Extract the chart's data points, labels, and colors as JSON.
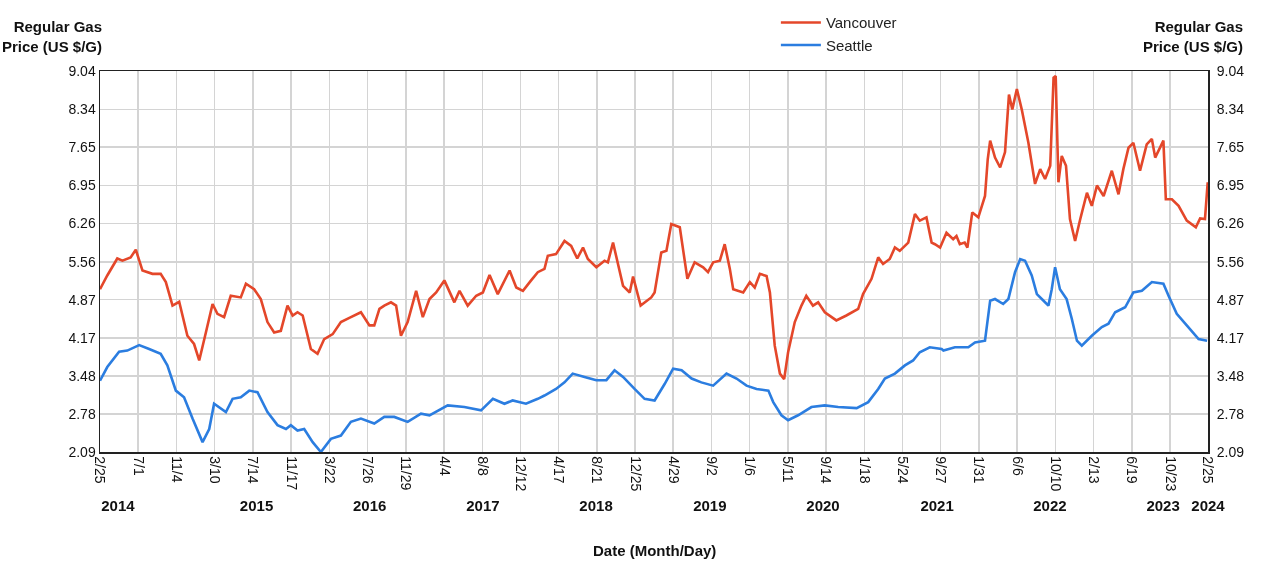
{
  "chart_data": {
    "type": "line",
    "xlabel": "Date (Month/Day)",
    "ylabel": "Regular Gas Price (US $/G)",
    "y2label": "Regular Gas Price (US $/G)",
    "xlim": [
      "2014-02-25",
      "2024-02-25"
    ],
    "xticks": [
      {
        "value": "2014-02-25",
        "label": "2/25"
      },
      {
        "value": "2014-07-01",
        "label": "7/1"
      },
      {
        "value": "2014-11-04",
        "label": "11/4"
      },
      {
        "value": "2015-03-10",
        "label": "3/10"
      },
      {
        "value": "2015-07-14",
        "label": "7/14"
      },
      {
        "value": "2015-11-17",
        "label": "11/17"
      },
      {
        "value": "2016-03-22",
        "label": "3/22"
      },
      {
        "value": "2016-07-26",
        "label": "7/26"
      },
      {
        "value": "2016-11-29",
        "label": "11/29"
      },
      {
        "value": "2017-04-04",
        "label": "4/4"
      },
      {
        "value": "2017-08-08",
        "label": "8/8"
      },
      {
        "value": "2017-12-12",
        "label": "12/12"
      },
      {
        "value": "2018-04-17",
        "label": "4/17"
      },
      {
        "value": "2018-08-21",
        "label": "8/21"
      },
      {
        "value": "2018-12-25",
        "label": "12/25"
      },
      {
        "value": "2019-04-29",
        "label": "4/29"
      },
      {
        "value": "2019-09-02",
        "label": "9/2"
      },
      {
        "value": "2020-01-06",
        "label": "1/6"
      },
      {
        "value": "2020-05-11",
        "label": "5/11"
      },
      {
        "value": "2020-09-14",
        "label": "9/14"
      },
      {
        "value": "2021-01-18",
        "label": "1/18"
      },
      {
        "value": "2021-05-24",
        "label": "5/24"
      },
      {
        "value": "2021-09-27",
        "label": "9/27"
      },
      {
        "value": "2022-01-31",
        "label": "1/31"
      },
      {
        "value": "2022-06-06",
        "label": "6/6"
      },
      {
        "value": "2022-10-10",
        "label": "10/10"
      },
      {
        "value": "2023-02-13",
        "label": "2/13"
      },
      {
        "value": "2023-06-19",
        "label": "6/19"
      },
      {
        "value": "2023-10-23",
        "label": "10/23"
      },
      {
        "value": "2024-02-25",
        "label": "2/25"
      }
    ],
    "x2lim": [
      "2014-02-25",
      "2024-02-25"
    ],
    "x2ticks": [
      {
        "value": "2014-04-25",
        "label": "2014"
      },
      {
        "value": "2015-07-26",
        "label": "2015"
      },
      {
        "value": "2016-08-02",
        "label": "2016"
      },
      {
        "value": "2017-08-10",
        "label": "2017"
      },
      {
        "value": "2018-08-18",
        "label": "2018"
      },
      {
        "value": "2019-08-28",
        "label": "2019"
      },
      {
        "value": "2020-09-04",
        "label": "2020"
      },
      {
        "value": "2021-09-15",
        "label": "2021"
      },
      {
        "value": "2022-09-22",
        "label": "2022"
      },
      {
        "value": "2023-09-30",
        "label": "2023"
      },
      {
        "value": "2024-02-25",
        "label": "2024"
      }
    ],
    "ylim": [
      2.09,
      9.04
    ],
    "yticks": [
      2.09,
      2.78,
      3.48,
      4.17,
      4.87,
      5.56,
      6.26,
      6.95,
      7.65,
      8.34,
      9.04
    ],
    "y2lim": [
      2.09,
      9.04
    ],
    "y2ticks": [
      2.09,
      2.78,
      3.48,
      4.17,
      4.87,
      5.56,
      6.26,
      6.95,
      7.65,
      8.34,
      9.04
    ],
    "grid": true,
    "legend": "top",
    "series": [
      {
        "name": "Vancouver",
        "color": "#e4472a",
        "x": [
          "2014-02-25",
          "2014-03-21",
          "2014-04-23",
          "2014-05-10",
          "2014-06-06",
          "2014-06-23",
          "2014-07-15",
          "2014-08-17",
          "2014-09-13",
          "2014-09-30",
          "2014-10-22",
          "2014-11-13",
          "2014-12-10",
          "2015-01-01",
          "2015-01-18",
          "2015-02-09",
          "2015-03-03",
          "2015-03-19",
          "2015-04-10",
          "2015-05-02",
          "2015-06-04",
          "2015-06-21",
          "2015-07-18",
          "2015-08-09",
          "2015-08-31",
          "2015-09-22",
          "2015-10-14",
          "2015-11-05",
          "2015-11-22",
          "2015-12-08",
          "2015-12-25",
          "2016-01-21",
          "2016-02-12",
          "2016-03-05",
          "2016-04-02",
          "2016-04-29",
          "2016-06-01",
          "2016-07-04",
          "2016-08-01",
          "2016-08-17",
          "2016-09-03",
          "2016-09-19",
          "2016-10-11",
          "2016-10-28",
          "2016-11-13",
          "2016-12-05",
          "2017-01-02",
          "2017-01-24",
          "2017-02-15",
          "2017-03-09",
          "2017-04-05",
          "2017-05-08",
          "2017-05-25",
          "2017-06-21",
          "2017-07-19",
          "2017-08-10",
          "2017-09-01",
          "2017-09-28",
          "2017-11-06",
          "2017-11-28",
          "2017-12-20",
          "2018-01-16",
          "2018-02-07",
          "2018-03-01",
          "2018-03-12",
          "2018-04-08",
          "2018-05-06",
          "2018-05-28",
          "2018-06-17",
          "2018-07-06",
          "2018-07-22",
          "2018-08-19",
          "2018-09-15",
          "2018-09-26",
          "2018-10-13",
          "2018-11-15",
          "2018-12-07",
          "2018-12-18",
          "2019-01-12",
          "2019-02-16",
          "2019-02-27",
          "2019-03-21",
          "2019-04-07",
          "2019-04-23",
          "2019-05-21",
          "2019-06-15",
          "2019-07-09",
          "2019-08-06",
          "2019-08-22",
          "2019-09-08",
          "2019-09-30",
          "2019-10-16",
          "2019-11-02",
          "2019-11-13",
          "2019-12-16",
          "2020-01-07",
          "2020-01-23",
          "2020-02-09",
          "2020-03-02",
          "2020-03-13",
          "2020-03-29",
          "2020-04-15",
          "2020-04-29",
          "2020-05-12",
          "2020-06-03",
          "2020-06-25",
          "2020-07-11",
          "2020-08-02",
          "2020-08-19",
          "2020-09-10",
          "2020-10-18",
          "2020-11-20",
          "2020-12-29",
          "2021-01-14",
          "2021-02-11",
          "2021-03-05",
          "2021-03-21",
          "2021-04-12",
          "2021-04-29",
          "2021-05-15",
          "2021-06-12",
          "2021-07-04",
          "2021-07-20",
          "2021-08-11",
          "2021-08-28",
          "2021-09-08",
          "2021-09-25",
          "2021-10-16",
          "2021-11-07",
          "2021-11-18",
          "2021-11-29",
          "2021-12-15",
          "2021-12-24",
          "2022-01-09",
          "2022-01-29",
          "2022-02-20",
          "2022-03-01",
          "2022-03-09",
          "2022-03-25",
          "2022-04-11",
          "2022-04-27",
          "2022-05-10",
          "2022-05-21",
          "2022-06-05",
          "2022-06-21",
          "2022-07-13",
          "2022-08-04",
          "2022-08-21",
          "2022-09-06",
          "2022-09-23",
          "2022-10-04",
          "2022-10-11",
          "2022-10-20",
          "2022-10-31",
          "2022-11-14",
          "2022-11-27",
          "2022-12-14",
          "2022-12-31",
          "2023-01-22",
          "2023-02-07",
          "2023-02-24",
          "2023-03-18",
          "2023-04-14",
          "2023-05-06",
          "2023-05-22",
          "2023-06-08",
          "2023-06-24",
          "2023-07-16",
          "2023-08-07",
          "2023-08-24",
          "2023-09-04",
          "2023-10-01",
          "2023-10-09",
          "2023-10-29",
          "2023-11-20",
          "2023-12-17",
          "2024-01-16",
          "2024-01-30",
          "2024-02-15",
          "2024-02-24"
        ],
        "values": [
          5.06,
          5.31,
          5.62,
          5.58,
          5.64,
          5.78,
          5.4,
          5.34,
          5.34,
          5.19,
          4.76,
          4.83,
          4.21,
          4.06,
          3.76,
          4.27,
          4.79,
          4.61,
          4.55,
          4.94,
          4.91,
          5.16,
          5.06,
          4.88,
          4.46,
          4.27,
          4.3,
          4.76,
          4.58,
          4.64,
          4.58,
          3.97,
          3.88,
          4.15,
          4.24,
          4.46,
          4.55,
          4.64,
          4.4,
          4.4,
          4.7,
          4.76,
          4.82,
          4.76,
          4.21,
          4.46,
          5.03,
          4.55,
          4.88,
          5.0,
          5.22,
          4.82,
          5.03,
          4.76,
          4.94,
          5.0,
          5.32,
          4.97,
          5.4,
          5.09,
          5.03,
          5.22,
          5.37,
          5.43,
          5.67,
          5.7,
          5.94,
          5.85,
          5.62,
          5.82,
          5.61,
          5.46,
          5.58,
          5.55,
          5.91,
          5.12,
          5.0,
          5.29,
          4.76,
          4.91,
          5.0,
          5.73,
          5.76,
          6.25,
          6.19,
          5.25,
          5.55,
          5.46,
          5.37,
          5.55,
          5.58,
          5.88,
          5.43,
          5.06,
          5.0,
          5.19,
          5.09,
          5.34,
          5.3,
          5.0,
          4.03,
          3.52,
          3.42,
          3.91,
          4.46,
          4.76,
          4.94,
          4.76,
          4.82,
          4.64,
          4.49,
          4.58,
          4.7,
          4.97,
          5.25,
          5.64,
          5.52,
          5.61,
          5.82,
          5.76,
          5.91,
          6.43,
          6.31,
          6.37,
          5.91,
          5.88,
          5.82,
          6.09,
          5.97,
          6.03,
          5.88,
          5.91,
          5.82,
          6.46,
          6.37,
          6.76,
          7.43,
          7.77,
          7.46,
          7.28,
          7.56,
          8.61,
          8.34,
          8.71,
          8.34,
          7.73,
          6.98,
          7.25,
          7.07,
          7.31,
          8.92,
          8.95,
          7.01,
          7.49,
          7.31,
          6.34,
          5.94,
          6.34,
          6.82,
          6.58,
          6.95,
          6.76,
          7.22,
          6.79,
          7.25,
          7.64,
          7.73,
          7.22,
          7.7,
          7.8,
          7.46,
          7.77,
          6.7,
          6.7,
          6.58,
          6.31,
          6.19,
          6.35,
          6.34,
          7.01
        ]
      },
      {
        "name": "Seattle",
        "color": "#2b7de0",
        "x": [
          "2014-02-25",
          "2014-03-21",
          "2014-04-29",
          "2014-05-26",
          "2014-07-04",
          "2014-08-06",
          "2014-09-13",
          "2014-10-05",
          "2014-11-02",
          "2014-11-29",
          "2014-12-27",
          "2015-01-29",
          "2015-02-20",
          "2015-03-08",
          "2015-04-16",
          "2015-05-08",
          "2015-06-04",
          "2015-07-02",
          "2015-07-29",
          "2015-08-31",
          "2015-10-03",
          "2015-10-31",
          "2015-11-16",
          "2015-12-08",
          "2015-12-30",
          "2016-01-27",
          "2016-02-23",
          "2016-03-27",
          "2016-04-29",
          "2016-06-01",
          "2016-07-04",
          "2016-08-17",
          "2016-09-19",
          "2016-10-22",
          "2016-12-05",
          "2017-01-18",
          "2017-02-15",
          "2017-04-16",
          "2017-06-10",
          "2017-08-04",
          "2017-09-12",
          "2017-10-20",
          "2017-11-16",
          "2017-12-30",
          "2018-02-07",
          "2018-03-01",
          "2018-04-08",
          "2018-05-06",
          "2018-06-02",
          "2018-07-11",
          "2018-08-19",
          "2018-09-21",
          "2018-10-18",
          "2018-11-15",
          "2018-12-23",
          "2019-01-25",
          "2019-02-27",
          "2019-04-01",
          "2019-04-29",
          "2019-05-27",
          "2019-06-29",
          "2019-07-31",
          "2019-09-08",
          "2019-10-22",
          "2019-11-24",
          "2019-12-27",
          "2020-01-29",
          "2020-03-08",
          "2020-03-24",
          "2020-04-20",
          "2020-05-12",
          "2020-06-14",
          "2020-07-28",
          "2020-09-10",
          "2020-10-24",
          "2020-12-24",
          "2021-01-31",
          "2021-03-05",
          "2021-03-27",
          "2021-04-29",
          "2021-06-01",
          "2021-06-28",
          "2021-07-20",
          "2021-08-22",
          "2021-09-30",
          "2021-10-06",
          "2021-11-13",
          "2021-12-27",
          "2022-01-18",
          "2022-02-20",
          "2022-03-09",
          "2022-03-25",
          "2022-04-21",
          "2022-05-08",
          "2022-05-30",
          "2022-06-16",
          "2022-07-02",
          "2022-07-24",
          "2022-08-10",
          "2022-09-01",
          "2022-09-17",
          "2022-09-28",
          "2022-10-09",
          "2022-10-25",
          "2022-11-16",
          "2022-12-03",
          "2022-12-20",
          "2023-01-05",
          "2023-02-07",
          "2023-03-12",
          "2023-04-03",
          "2023-04-25",
          "2023-05-28",
          "2023-06-24",
          "2023-07-22",
          "2023-08-24",
          "2023-10-01",
          "2023-10-18",
          "2023-11-14",
          "2023-12-17",
          "2024-01-25",
          "2024-02-22"
        ],
        "values": [
          3.39,
          3.64,
          3.92,
          3.94,
          4.04,
          3.97,
          3.88,
          3.67,
          3.21,
          3.09,
          2.7,
          2.27,
          2.51,
          2.97,
          2.82,
          3.06,
          3.09,
          3.21,
          3.18,
          2.82,
          2.58,
          2.51,
          2.58,
          2.48,
          2.51,
          2.27,
          2.09,
          2.33,
          2.39,
          2.64,
          2.7,
          2.61,
          2.73,
          2.73,
          2.64,
          2.79,
          2.76,
          2.94,
          2.91,
          2.85,
          3.06,
          2.97,
          3.03,
          2.97,
          3.06,
          3.12,
          3.24,
          3.36,
          3.52,
          3.46,
          3.4,
          3.4,
          3.58,
          3.46,
          3.24,
          3.06,
          3.03,
          3.33,
          3.61,
          3.58,
          3.43,
          3.36,
          3.3,
          3.52,
          3.43,
          3.3,
          3.24,
          3.21,
          3.0,
          2.76,
          2.67,
          2.76,
          2.91,
          2.94,
          2.91,
          2.89,
          3.0,
          3.24,
          3.43,
          3.52,
          3.67,
          3.76,
          3.91,
          4.0,
          3.97,
          3.94,
          4.0,
          4.0,
          4.09,
          4.12,
          4.85,
          4.88,
          4.79,
          4.88,
          5.37,
          5.61,
          5.58,
          5.31,
          4.97,
          4.85,
          4.76,
          5.06,
          5.46,
          5.06,
          4.88,
          4.52,
          4.12,
          4.03,
          4.21,
          4.37,
          4.43,
          4.64,
          4.73,
          5.0,
          5.03,
          5.19,
          5.16,
          4.94,
          4.61,
          4.4,
          4.15,
          4.12
        ]
      }
    ]
  }
}
